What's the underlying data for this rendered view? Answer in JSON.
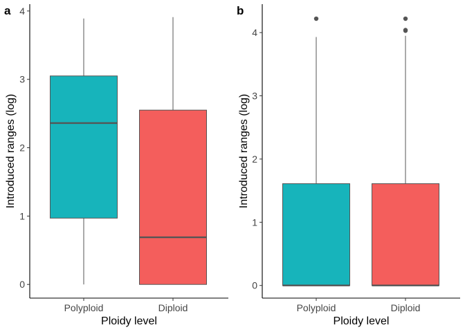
{
  "colors": {
    "Polyploid": "#17b4bb",
    "Diploid": "#f45e5c"
  },
  "chart_data": [
    {
      "type": "boxplot",
      "panel_label": "a",
      "xlabel": "Ploidy level",
      "ylabel": "Introduced ranges (log)",
      "ylim": [
        -0.2,
        4.1
      ],
      "yticks": [
        0,
        1,
        2,
        3,
        4
      ],
      "categories": [
        "Polyploid",
        "Diploid"
      ],
      "boxes": [
        {
          "category": "Polyploid",
          "whisker_low": 0.0,
          "q1": 0.97,
          "median": 2.36,
          "q3": 3.05,
          "whisker_high": 3.89,
          "outliers": []
        },
        {
          "category": "Diploid",
          "whisker_low": 0.0,
          "q1": 0.0,
          "median": 0.69,
          "q3": 2.55,
          "whisker_high": 3.91,
          "outliers": []
        }
      ]
    },
    {
      "type": "boxplot",
      "panel_label": "b",
      "xlabel": "Ploidy level",
      "ylabel": "Introduced ranges (log)",
      "ylim": [
        -0.2,
        4.45
      ],
      "yticks": [
        0,
        1,
        2,
        3,
        4
      ],
      "categories": [
        "Polyploid",
        "Diploid"
      ],
      "boxes": [
        {
          "category": "Polyploid",
          "whisker_low": 0.0,
          "q1": 0.0,
          "median": 0.0,
          "q3": 1.61,
          "whisker_high": 3.93,
          "outliers": [
            4.22
          ]
        },
        {
          "category": "Diploid",
          "whisker_low": 0.0,
          "q1": 0.0,
          "median": 0.0,
          "q3": 1.61,
          "whisker_high": 3.95,
          "outliers": [
            4.04,
            4.03,
            4.22
          ]
        }
      ]
    }
  ]
}
